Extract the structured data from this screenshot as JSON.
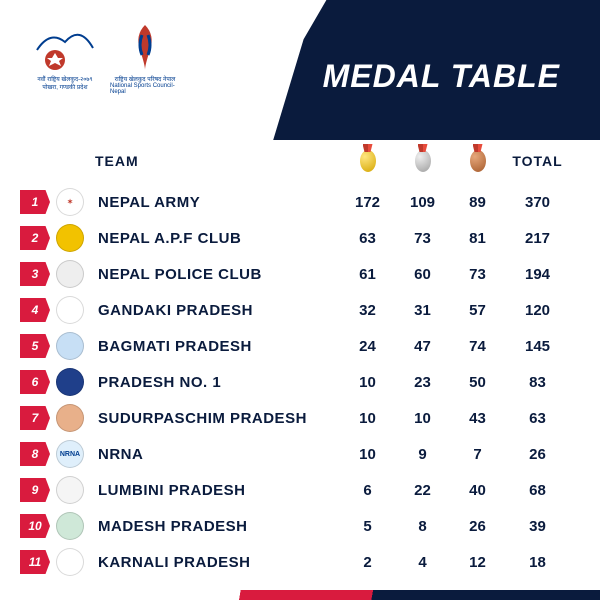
{
  "title": "MEDAL TABLE",
  "headers": {
    "team": "TEAM",
    "total": "TOTAL"
  },
  "colors": {
    "rank_bg": "#d91b3e",
    "text": "#0a1b3d",
    "header_bg": "#0a1b3d",
    "gold": "#d4a500",
    "silver": "#9e9e9e",
    "bronze": "#a55a2a"
  },
  "logos": [
    {
      "caption_top": "नवौं राष्ट्रिय खेलकुद-२०७९",
      "caption_bottom": "पोखरा, गण्डकी प्रदेश"
    },
    {
      "caption_top": "राष्ट्रिय खेलकुद परिषद नेपाल",
      "caption_bottom": "National Sports Council-Nepal"
    }
  ],
  "rows": [
    {
      "rank": 1,
      "team": "NEPAL ARMY",
      "g": 172,
      "s": 109,
      "b": 89,
      "total": 370,
      "emblem_bg": "#ffffff",
      "emblem_sym": "✶",
      "emblem_col": "#c0392b"
    },
    {
      "rank": 2,
      "team": "NEPAL A.P.F CLUB",
      "g": 63,
      "s": 73,
      "b": 81,
      "total": 217,
      "emblem_bg": "#f2c200",
      "emblem_sym": "",
      "emblem_col": "#8b0000"
    },
    {
      "rank": 3,
      "team": "NEPAL POLICE CLUB",
      "g": 61,
      "s": 60,
      "b": 73,
      "total": 194,
      "emblem_bg": "#eeeeee",
      "emblem_sym": "",
      "emblem_col": "#b8860b"
    },
    {
      "rank": 4,
      "team": "GANDAKI PRADESH",
      "g": 32,
      "s": 31,
      "b": 57,
      "total": 120,
      "emblem_bg": "#ffffff",
      "emblem_sym": "",
      "emblem_col": "#c0392b"
    },
    {
      "rank": 5,
      "team": "BAGMATI PRADESH",
      "g": 24,
      "s": 47,
      "b": 74,
      "total": 145,
      "emblem_bg": "#c7dff5",
      "emblem_sym": "",
      "emblem_col": "#003d8f"
    },
    {
      "rank": 6,
      "team": "PRADESH NO. 1",
      "g": 10,
      "s": 23,
      "b": 50,
      "total": 83,
      "emblem_bg": "#1f3f8a",
      "emblem_sym": "",
      "emblem_col": "#c0392b"
    },
    {
      "rank": 7,
      "team": "SUDURPASCHIM PRADESH",
      "g": 10,
      "s": 10,
      "b": 43,
      "total": 63,
      "emblem_bg": "#e8b08a",
      "emblem_sym": "",
      "emblem_col": "#8b0000"
    },
    {
      "rank": 8,
      "team": "NRNA",
      "g": 10,
      "s": 9,
      "b": 7,
      "total": 26,
      "emblem_bg": "#dfeffb",
      "emblem_sym": "NRNA",
      "emblem_col": "#003d8f"
    },
    {
      "rank": 9,
      "team": "LUMBINI PRADESH",
      "g": 6,
      "s": 22,
      "b": 40,
      "total": 68,
      "emblem_bg": "#f5f5f5",
      "emblem_sym": "",
      "emblem_col": "#c0392b"
    },
    {
      "rank": 10,
      "team": "MADESH PRADESH",
      "g": 5,
      "s": 8,
      "b": 26,
      "total": 39,
      "emblem_bg": "#cfe8d8",
      "emblem_sym": "",
      "emblem_col": "#2d6a4f"
    },
    {
      "rank": 11,
      "team": "KARNALI PRADESH",
      "g": 2,
      "s": 4,
      "b": 12,
      "total": 18,
      "emblem_bg": "#ffffff",
      "emblem_sym": "",
      "emblem_col": "#c0392b"
    }
  ]
}
